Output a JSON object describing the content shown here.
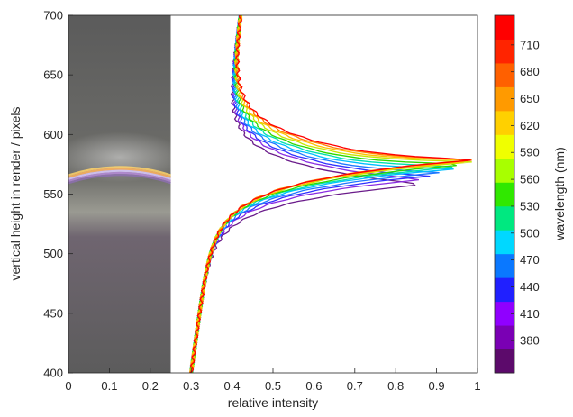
{
  "chart_data": {
    "type": "line",
    "xlabel": "relative intensity",
    "ylabel": "vertical height in render / pixels",
    "xlim": [
      0,
      1
    ],
    "ylim": [
      400,
      700
    ],
    "xticks": [
      "0",
      "0.1",
      "0.2",
      "0.3",
      "0.4",
      "0.5",
      "0.6",
      "0.7",
      "0.8",
      "0.9",
      "1"
    ],
    "yticks": [
      "400",
      "450",
      "500",
      "550",
      "600",
      "650",
      "700"
    ],
    "grid": false,
    "inset_image": {
      "description_tag": "render-strip",
      "x_range": [
        0,
        0.25
      ],
      "rainbow_band_height": 572
    },
    "colorbar": {
      "label": "wavelength (nm)",
      "ticks": [
        "380",
        "410",
        "440",
        "470",
        "500",
        "530",
        "560",
        "590",
        "620",
        "650",
        "680",
        "710"
      ],
      "colors": [
        "#5c0a6b",
        "#7a00b4",
        "#9000ff",
        "#2020ff",
        "#0a78ff",
        "#00d8ff",
        "#00e880",
        "#30e800",
        "#a8ff00",
        "#f0ff00",
        "#ffd000",
        "#ff9a00",
        "#ff6000",
        "#ff2400",
        "#ff0000"
      ]
    },
    "series": [
      {
        "color": "#6a1b8a",
        "peak_x": 0.84,
        "peak_y": 557,
        "upper_min_x": 0.63,
        "upper_y": 570,
        "k_lo": 0.065,
        "k_hi": 0.053
      },
      {
        "color": "#8a2be2",
        "peak_x": 0.86,
        "peak_y": 562,
        "upper_min_x": 0.65,
        "upper_y": 572,
        "k_lo": 0.064,
        "k_hi": 0.052
      },
      {
        "color": "#3030ff",
        "peak_x": 0.88,
        "peak_y": 565,
        "upper_min_x": 0.67,
        "upper_y": 573,
        "k_lo": 0.063,
        "k_hi": 0.052
      },
      {
        "color": "#1e78ff",
        "peak_x": 0.91,
        "peak_y": 568,
        "upper_min_x": 0.69,
        "upper_y": 574,
        "k_lo": 0.062,
        "k_hi": 0.051
      },
      {
        "color": "#00bfff",
        "peak_x": 0.94,
        "peak_y": 571,
        "upper_min_x": 0.71,
        "upper_y": 575,
        "k_lo": 0.061,
        "k_hi": 0.051
      },
      {
        "color": "#00e0b0",
        "peak_x": 0.96,
        "peak_y": 573,
        "upper_min_x": 0.73,
        "upper_y": 576,
        "k_lo": 0.06,
        "k_hi": 0.05
      },
      {
        "color": "#2bd900",
        "peak_x": 0.98,
        "peak_y": 575,
        "upper_min_x": 0.75,
        "upper_y": 577,
        "k_lo": 0.059,
        "k_hi": 0.05
      },
      {
        "color": "#c8e600",
        "peak_x": 0.99,
        "peak_y": 577,
        "upper_min_x": 0.77,
        "upper_y": 578,
        "k_lo": 0.058,
        "k_hi": 0.049
      },
      {
        "color": "#ffc000",
        "peak_x": 1.0,
        "peak_y": 578,
        "upper_min_x": 0.79,
        "upper_y": 579,
        "k_lo": 0.057,
        "k_hi": 0.049
      },
      {
        "color": "#ff8000",
        "peak_x": 1.0,
        "peak_y": 579,
        "upper_min_x": 0.8,
        "upper_y": 580,
        "k_lo": 0.057,
        "k_hi": 0.048
      },
      {
        "color": "#ff0000",
        "peak_x": 1.0,
        "peak_y": 579,
        "upper_min_x": 0.81,
        "upper_y": 581,
        "k_lo": 0.056,
        "k_hi": 0.048
      }
    ]
  }
}
